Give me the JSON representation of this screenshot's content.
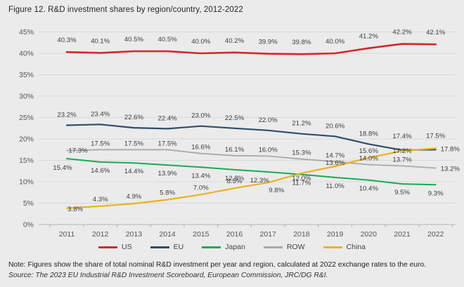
{
  "title": "Figure 12. R&D investment shares by region/country, 2012-2022",
  "note": "Note: Figures show the share of total nominal R&D investment per year and region, calculated at 2022 exchange rates to the euro.",
  "source": "Source: The 2023 EU Industrial R&D Investment Scoreboard, European Commission, JRC/DG R&I.",
  "colors": {
    "background": "#ebebeb",
    "gridline": "#d8d8d8",
    "axis_line": "#b3b3b3",
    "title_text": "#262626",
    "axis_text": "#555555",
    "label_text": "#3d3d3d"
  },
  "chart_data": {
    "type": "line",
    "x": [
      2011,
      2012,
      2013,
      2014,
      2015,
      2016,
      2017,
      2018,
      2019,
      2020,
      2021,
      2022
    ],
    "series": [
      {
        "name": "US",
        "color": "#d7252b",
        "values": [
          40.3,
          40.1,
          40.5,
          40.5,
          40.0,
          40.2,
          39.9,
          39.8,
          40.0,
          41.2,
          42.2,
          42.1
        ]
      },
      {
        "name": "EU",
        "color": "#2e4d6b",
        "values": [
          23.2,
          23.4,
          22.6,
          22.4,
          23.0,
          22.5,
          22.0,
          21.2,
          20.6,
          18.8,
          17.4,
          17.5
        ]
      },
      {
        "name": "Japan",
        "color": "#17ab51",
        "values": [
          15.4,
          14.6,
          14.4,
          13.9,
          13.4,
          12.8,
          12.3,
          11.7,
          11.0,
          10.4,
          9.5,
          9.3
        ]
      },
      {
        "name": "ROW",
        "color": "#a9a9a9",
        "values": [
          17.3,
          17.5,
          17.5,
          17.5,
          16.6,
          16.1,
          16.0,
          15.3,
          14.7,
          14.0,
          13.7,
          13.2
        ]
      },
      {
        "name": "China",
        "color": "#eab31c",
        "values": [
          3.8,
          4.3,
          4.9,
          5.8,
          7.0,
          8.5,
          9.8,
          12.0,
          13.6,
          15.6,
          17.2,
          17.8
        ]
      }
    ],
    "ylim": [
      0,
      45
    ],
    "ytick_step": 5,
    "value_suffix": "%",
    "grid": true,
    "legend_position": "bottom",
    "data_labels": true
  }
}
